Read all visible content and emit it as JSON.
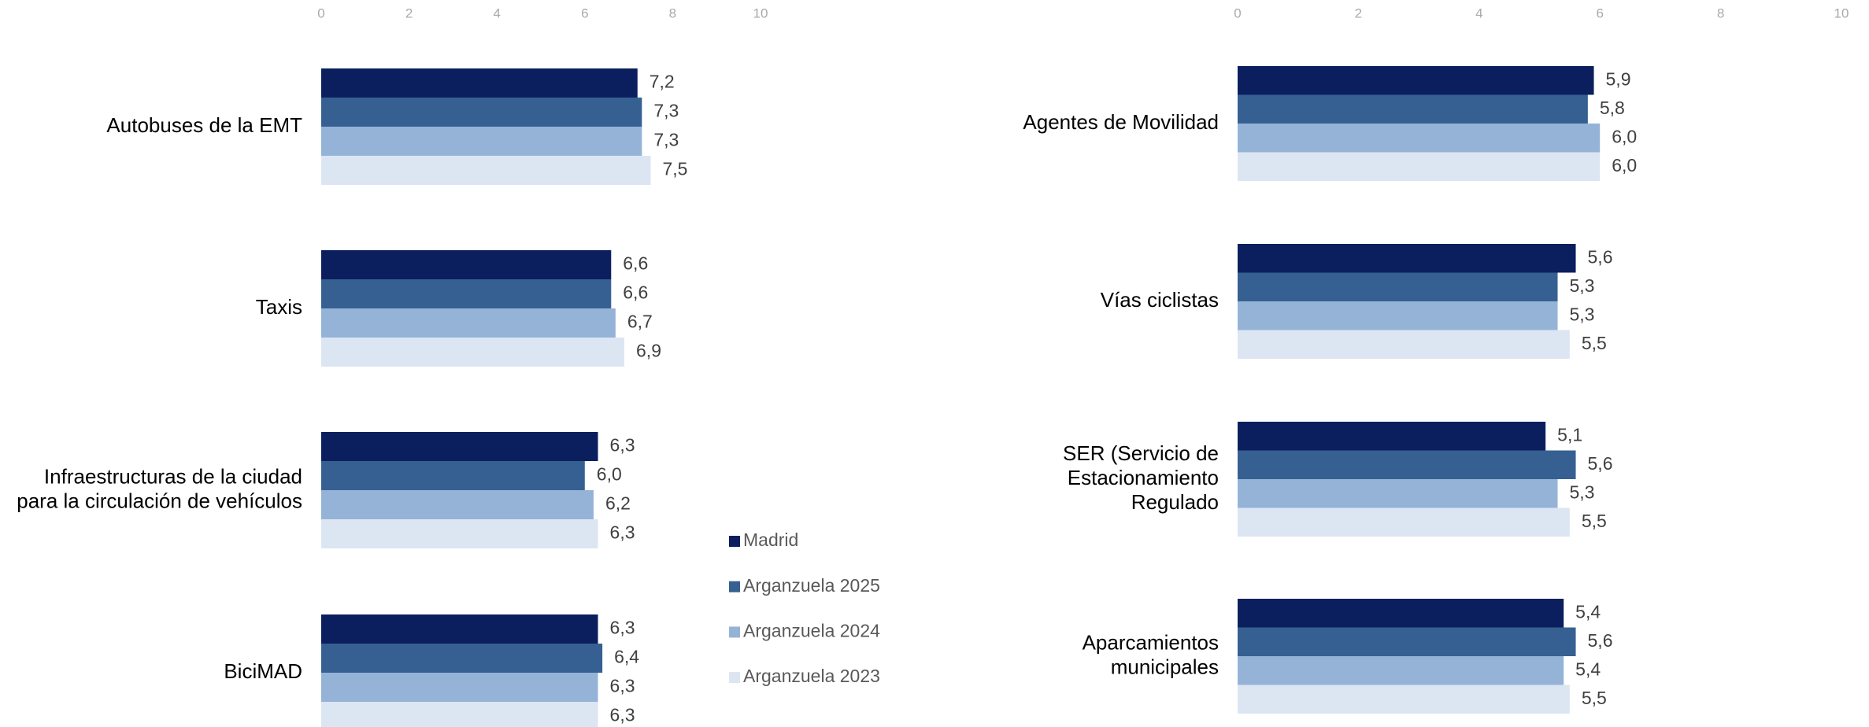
{
  "chart_data": [
    {
      "type": "bar",
      "orientation": "horizontal",
      "categories": [
        "Autobuses de la EMT",
        "Taxis",
        "Infraestructuras de la ciudad\npara la  circulación de vehículos",
        "BiciMAD"
      ],
      "xlim": [
        0,
        10
      ],
      "xticks": [
        0,
        2,
        4,
        6,
        8,
        10
      ],
      "series": [
        {
          "name": "Madrid",
          "color": "#0b1f5e",
          "values": [
            7.2,
            6.6,
            6.3,
            6.3
          ],
          "value_labels": [
            "7,2",
            "6,6",
            "6,3",
            "6,3"
          ]
        },
        {
          "name": "Arganzuela 2025",
          "color": "#366092",
          "values": [
            7.3,
            6.6,
            6.0,
            6.4
          ],
          "value_labels": [
            "7,3",
            "6,6",
            "6,0",
            "6,4"
          ]
        },
        {
          "name": "Arganzuela 2024",
          "color": "#95b3d7",
          "values": [
            7.3,
            6.7,
            6.2,
            6.3
          ],
          "value_labels": [
            "7,3",
            "6,7",
            "6,2",
            "6,3"
          ]
        },
        {
          "name": "Arganzuela 2023",
          "color": "#dce6f2",
          "values": [
            7.5,
            6.9,
            6.3,
            6.3
          ],
          "value_labels": [
            "7,5",
            "6,9",
            "6,3",
            "6,3"
          ]
        }
      ]
    },
    {
      "type": "bar",
      "orientation": "horizontal",
      "categories": [
        "Agentes de Movilidad",
        "Vías ciclistas",
        "SER (Servicio de\nEstacionamiento\nRegulado",
        "Aparcamientos\nmunicipales"
      ],
      "xlim": [
        0,
        10
      ],
      "xticks": [
        0,
        2,
        4,
        6,
        8,
        10
      ],
      "series": [
        {
          "color": "#0b1f5e",
          "values": [
            5.9,
            5.6,
            5.1,
            5.4
          ],
          "value_labels": [
            "5,9",
            "5,6",
            "5,1",
            "5,4"
          ]
        },
        {
          "color": "#366092",
          "values": [
            5.8,
            5.3,
            5.6,
            5.6
          ],
          "value_labels": [
            "5,8",
            "5,3",
            "5,6",
            "5,6"
          ]
        },
        {
          "color": "#95b3d7",
          "values": [
            6.0,
            5.3,
            5.3,
            5.4
          ],
          "value_labels": [
            "6,0",
            "5,3",
            "5,3",
            "5,4"
          ]
        },
        {
          "color": "#dce6f2",
          "values": [
            6.0,
            5.5,
            5.5,
            5.5
          ],
          "value_labels": [
            "6,0",
            "5,5",
            "5,5",
            "5,5"
          ]
        }
      ]
    }
  ]
}
